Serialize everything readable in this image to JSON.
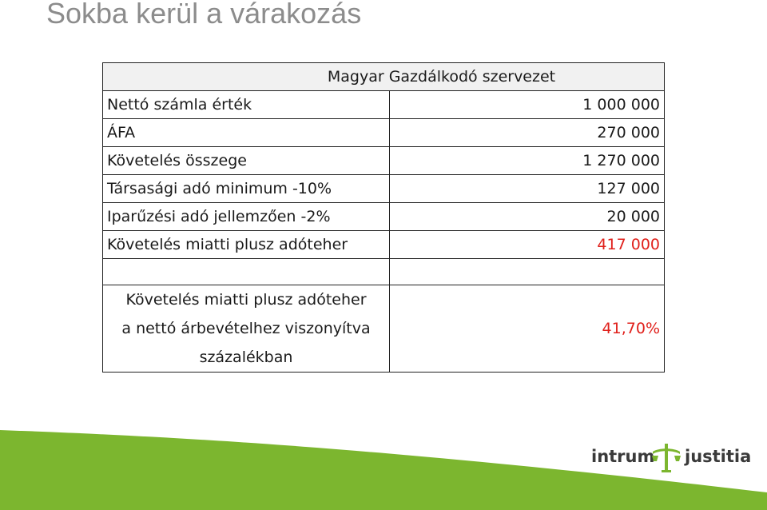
{
  "slide": {
    "title": "Sokba kerül a várakozás"
  },
  "table": {
    "header": "Magyar Gazdálkodó szervezet",
    "rows": [
      {
        "label": "Nettó számla érték",
        "value": "1 000 000"
      },
      {
        "label": "ÁFA",
        "value": "270 000"
      },
      {
        "label": "Követelés összege",
        "value": "1 270 000"
      },
      {
        "label": "Társasági adó minimum -10%",
        "value": "127 000"
      },
      {
        "label": "Iparűzési adó jellemzően -2%",
        "value": "20 000"
      },
      {
        "label": "Követelés miatti plusz adóteher",
        "value": "417 000"
      }
    ],
    "ratio": {
      "label_line1": "Követelés miatti plusz adóteher",
      "label_line2": "a nettó árbevételhez viszonyítva",
      "label_line3": "százalékban",
      "value": "41,70%"
    }
  },
  "logo": {
    "left_word": "intrum",
    "right_word": "justitia",
    "icon": "scales-of-justice-icon"
  },
  "colors": {
    "highlight_red": "#e0201b",
    "brand_green": "#7cb62f",
    "title_gray": "#8c8c8c"
  }
}
